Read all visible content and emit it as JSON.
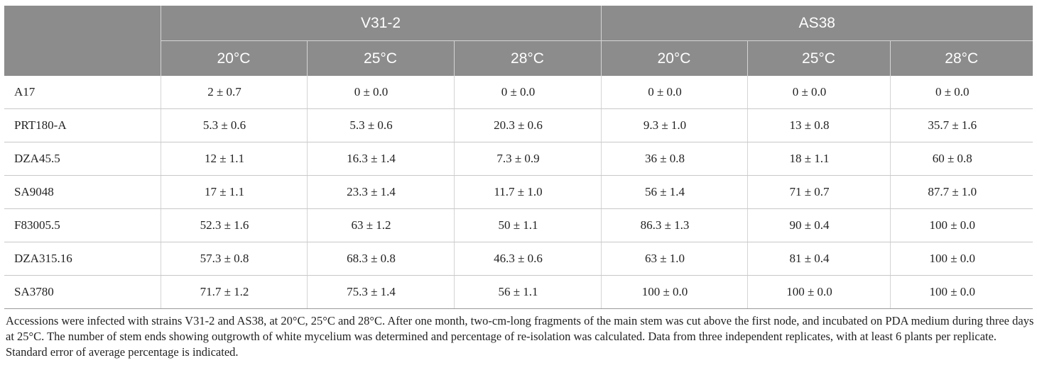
{
  "table": {
    "strains": [
      "V31-2",
      "AS38"
    ],
    "temperatures": [
      "20°C",
      "25°C",
      "28°C",
      "20°C",
      "25°C",
      "28°C"
    ],
    "rows": [
      {
        "accession": "A17",
        "values": [
          "2 ± 0.7",
          "0 ± 0.0",
          "0 ± 0.0",
          "0 ± 0.0",
          "0 ± 0.0",
          "0 ± 0.0"
        ]
      },
      {
        "accession": "PRT180-A",
        "values": [
          "5.3 ± 0.6",
          "5.3 ± 0.6",
          "20.3 ± 0.6",
          "9.3 ± 1.0",
          "13 ± 0.8",
          "35.7 ± 1.6"
        ]
      },
      {
        "accession": "DZA45.5",
        "values": [
          "12 ± 1.1",
          "16.3 ± 1.4",
          "7.3 ± 0.9",
          "36 ± 0.8",
          "18 ± 1.1",
          "60 ± 0.8"
        ]
      },
      {
        "accession": "SA9048",
        "values": [
          "17 ± 1.1",
          "23.3 ± 1.4",
          "11.7 ± 1.0",
          "56 ± 1.4",
          "71 ± 0.7",
          "87.7 ± 1.0"
        ]
      },
      {
        "accession": "F83005.5",
        "values": [
          "52.3 ± 1.6",
          "63 ± 1.2",
          "50 ± 1.1",
          "86.3 ± 1.3",
          "90 ± 0.4",
          "100 ± 0.0"
        ]
      },
      {
        "accession": "DZA315.16",
        "values": [
          "57.3 ± 0.8",
          "68.3 ± 0.8",
          "46.3 ± 0.6",
          "63 ± 1.0",
          "81 ± 0.4",
          "100 ± 0.0"
        ]
      },
      {
        "accession": "SA3780",
        "values": [
          "71.7 ± 1.2",
          "75.3 ± 1.4",
          "56 ± 1.1",
          "100 ± 0.0",
          "100 ± 0.0",
          "100 ± 0.0"
        ]
      }
    ]
  },
  "caption": "Accessions were infected with strains V31-2 and AS38, at 20°C, 25°C and 28°C. After one month, two-cm-long fragments of the main stem was cut above the first node, and incubated on PDA medium during three days at 25°C. The number of stem ends showing outgrowth of white mycelium was determined and percentage of re-isolation was calculated. Data from three independent replicates, with at least 6 plants per replicate. Standard error of average percentage is indicated.",
  "colors": {
    "header_bg": "#8c8c8c",
    "header_text": "#ffffff",
    "rule": "#c8c8c8"
  }
}
